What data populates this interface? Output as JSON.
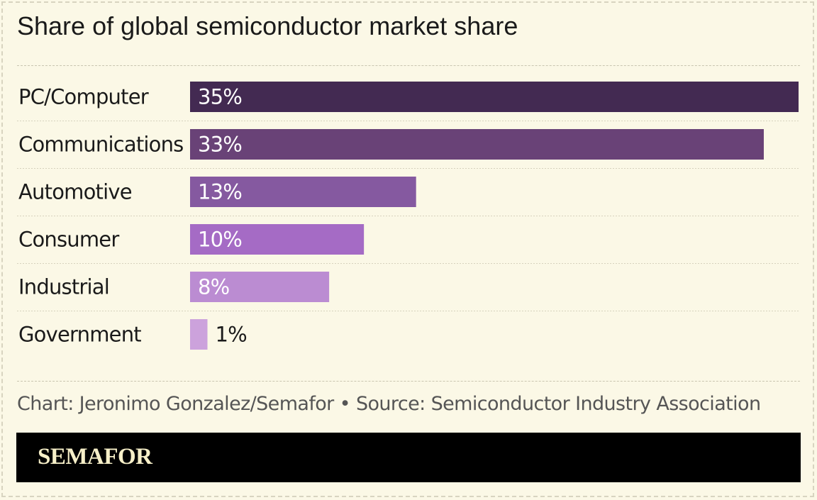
{
  "title": "Share of global semiconductor market share",
  "credit": "Chart: Jeronimo Gonzalez/Semafor • Source: Semiconductor Industry Association",
  "logo": "SEMAFOR",
  "colors": {
    "background": "#fbf8e6",
    "bars": [
      "#432a52",
      "#694277",
      "#8559a0",
      "#a56bc5",
      "#bb8cd2",
      "#cca2dc"
    ]
  },
  "chart_data": {
    "type": "bar",
    "orientation": "horizontal",
    "categories": [
      "PC/Computer",
      "Communications",
      "Automotive",
      "Consumer",
      "Industrial",
      "Government"
    ],
    "values": [
      35,
      33,
      13,
      10,
      8,
      1
    ],
    "value_labels": [
      "35%",
      "33%",
      "13%",
      "10%",
      "8%",
      "1%"
    ],
    "xlim": [
      0,
      35
    ],
    "grid": false,
    "legend": "none"
  }
}
